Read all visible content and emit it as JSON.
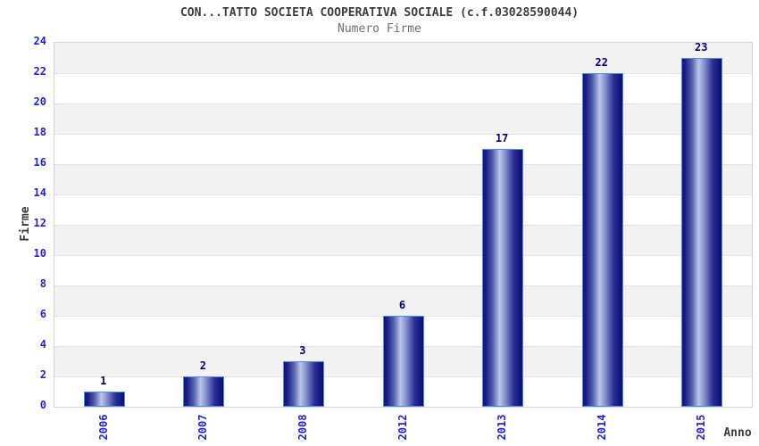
{
  "chart_data": {
    "type": "bar",
    "title": "CON...TATTO SOCIETA COOPERATIVA SOCIALE (c.f.03028590044)",
    "subtitle": "Numero Firme",
    "xlabel": "Anno",
    "ylabel": "Firme",
    "categories": [
      "2006",
      "2007",
      "2008",
      "2012",
      "2013",
      "2014",
      "2015"
    ],
    "values": [
      1,
      2,
      3,
      6,
      17,
      22,
      23
    ],
    "ylim": [
      0,
      24
    ],
    "ytick_step": 2,
    "yticks": [
      0,
      2,
      4,
      6,
      8,
      10,
      12,
      14,
      16,
      18,
      20,
      22,
      24
    ],
    "grid": "horizontal-bands-alternating",
    "legend": "none",
    "colors": {
      "tick_label": "#2323cd",
      "value_label": "#000078",
      "title": "#3c3c3c",
      "subtitle": "#6e6e6e",
      "axis_label": "#3c3c3c",
      "band_gray": "#f2f2f2",
      "band_white": "#ffffff",
      "plot_border": "#d4d4d4",
      "bar_dark": "#12127a",
      "bar_light": "#bcc6ea",
      "bar_border": "#4a90e2"
    }
  }
}
